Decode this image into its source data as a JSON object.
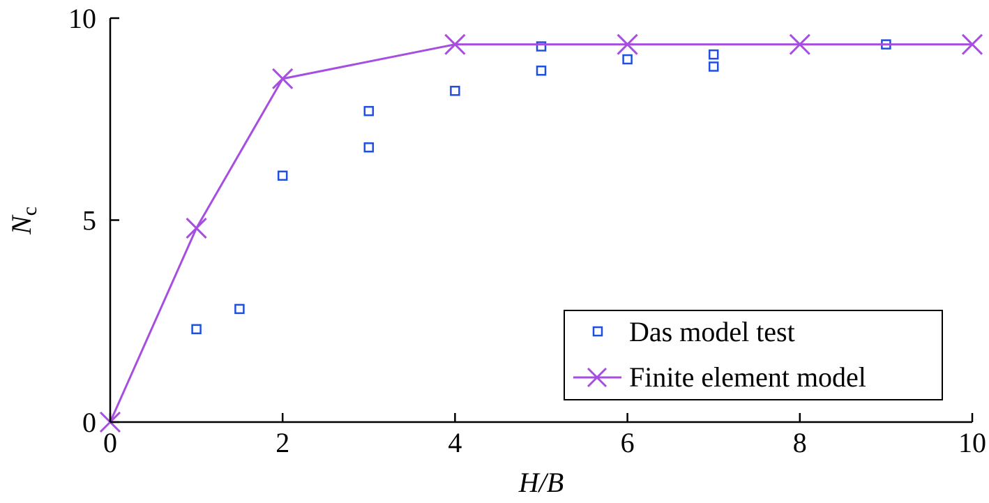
{
  "chart_data": {
    "type": "scatter",
    "title": "",
    "xlabel": "H/B",
    "ylabel": "N",
    "ylabel_subscript": "c",
    "xlim": [
      0,
      10
    ],
    "ylim": [
      0,
      10
    ],
    "xticks": [
      0,
      2,
      4,
      6,
      8,
      10
    ],
    "yticks": [
      0,
      5,
      10
    ],
    "xtick_labels": [
      "0",
      "2",
      "4",
      "6",
      "8",
      "10"
    ],
    "ytick_labels": [
      "0",
      "5",
      "10"
    ],
    "grid": false,
    "legend_position": "bottom-right",
    "series": [
      {
        "name": "Das model test",
        "kind": "scatter",
        "marker": "square",
        "color": "#1f4fe0",
        "points": [
          [
            1,
            2.3
          ],
          [
            1.5,
            2.8
          ],
          [
            2,
            6.1
          ],
          [
            3,
            7.7
          ],
          [
            3,
            6.8
          ],
          [
            4,
            8.2
          ],
          [
            5,
            9.3
          ],
          [
            5,
            8.7
          ],
          [
            6,
            8.98
          ],
          [
            7,
            9.1
          ],
          [
            7,
            8.8
          ],
          [
            9,
            9.35
          ]
        ]
      },
      {
        "name": "Finite element model",
        "kind": "line",
        "marker": "x",
        "color": "#a64ee0",
        "points": [
          [
            0,
            0
          ],
          [
            1,
            4.8
          ],
          [
            2,
            8.5
          ],
          [
            4,
            9.35
          ],
          [
            6,
            9.35
          ],
          [
            8,
            9.35
          ],
          [
            10,
            9.35
          ]
        ]
      }
    ]
  }
}
